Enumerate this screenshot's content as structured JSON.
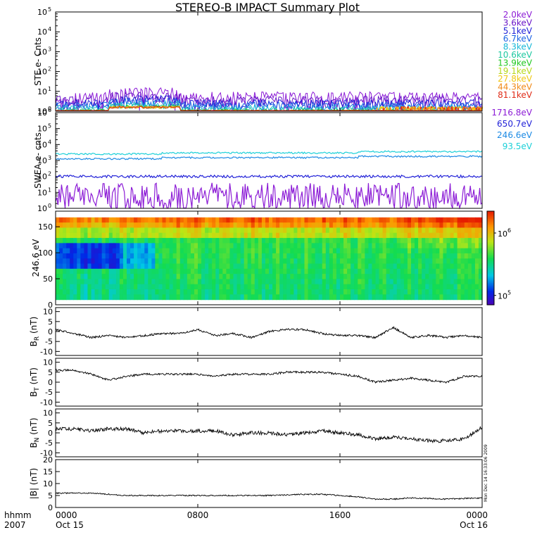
{
  "title": "STEREO-B IMPACT Summary Plot",
  "xaxis": {
    "row1_label": "hhmm",
    "row2_label": "2007",
    "ticks": [
      {
        "hour": 0,
        "top": "0000",
        "bottom": "Oct 15"
      },
      {
        "hour": 8,
        "top": "0800",
        "bottom": ""
      },
      {
        "hour": 16,
        "top": "1600",
        "bottom": ""
      },
      {
        "hour": 24,
        "top": "0000",
        "bottom": "Oct 16"
      }
    ]
  },
  "timestamp": "Mon Dec 14 16:33:06 2009",
  "chart_data": [
    {
      "id": "ste",
      "type": "line",
      "ylabel": "STE e- Cnts",
      "yscale": "log",
      "ylim_exp": [
        0,
        5
      ],
      "yticks": [
        {
          "base": "10",
          "exp": "0"
        },
        {
          "base": "10",
          "exp": "1"
        },
        {
          "base": "10",
          "exp": "2"
        },
        {
          "base": "10",
          "exp": "3"
        },
        {
          "base": "10",
          "exp": "4"
        },
        {
          "base": "10",
          "exp": "5"
        }
      ],
      "series": [
        {
          "name": "2.0keV",
          "color": "#8c1cd6",
          "level": 5.0,
          "noise": 0.45
        },
        {
          "name": "3.6keV",
          "color": "#6a16c8",
          "level": 3.4,
          "noise": 0.35
        },
        {
          "name": "5.1keV",
          "color": "#2222d8",
          "level": 2.4,
          "noise": 0.3
        },
        {
          "name": "6.7keV",
          "color": "#1c64e4",
          "level": 1.9,
          "noise": 0.25
        },
        {
          "name": "8.3keV",
          "color": "#18b8d8",
          "level": 1.5,
          "noise": 0.2
        },
        {
          "name": "10.6keV",
          "color": "#1ec8a0",
          "level": 1.2,
          "noise": 0.15
        },
        {
          "name": "13.9keV",
          "color": "#22c822",
          "level": 1.05,
          "noise": 0.1
        },
        {
          "name": "19.1keV",
          "color": "#b8d81c",
          "level": 1.0,
          "noise": 0.08
        },
        {
          "name": "27.8keV",
          "color": "#f0c818",
          "level": 1.0,
          "noise": 0.06
        },
        {
          "name": "44.3keV",
          "color": "#f08a18",
          "level": 1.0,
          "noise": 0.06
        },
        {
          "name": "81.1keV",
          "color": "#e02c18",
          "level": 1.0,
          "noise": 0.06
        }
      ]
    },
    {
      "id": "swea",
      "type": "line",
      "ylabel": "SWEA e- cnts",
      "yscale": "log",
      "ylim_exp": [
        0,
        6
      ],
      "yticks": [
        {
          "base": "10",
          "exp": "0"
        },
        {
          "base": "10",
          "exp": "1"
        },
        {
          "base": "10",
          "exp": "2"
        },
        {
          "base": "10",
          "exp": "3"
        },
        {
          "base": "10",
          "exp": "4"
        },
        {
          "base": "10",
          "exp": "5"
        },
        {
          "base": "10",
          "exp": "6"
        }
      ],
      "series": [
        {
          "name": "1716.8eV",
          "color": "#8c1cd6",
          "level": 5,
          "noise": 0.9
        },
        {
          "name": "650.7eV",
          "color": "#2222d8",
          "level": 100,
          "noise": 0.08
        },
        {
          "name": "246.6eV",
          "color": "#1c8ae4",
          "level": 1500,
          "noise": 0.05
        },
        {
          "name": "93.5eV",
          "color": "#1cd0d8",
          "level": 3000,
          "noise": 0.05
        }
      ]
    },
    {
      "id": "pad",
      "type": "heatmap",
      "ylabel": "246.6 eV",
      "ylim": [
        0,
        180
      ],
      "yticks": [
        "0",
        "50",
        "100",
        "150"
      ],
      "colorbar": {
        "scale": "log",
        "min_exp": 5,
        "max_exp": 6,
        "labels": [
          {
            "base": "10",
            "exp": "5"
          },
          {
            "base": "10",
            "exp": "6"
          }
        ]
      }
    },
    {
      "id": "br",
      "type": "line",
      "ylabel": "B",
      "ylabel_sub": "R",
      "ylabel_unit": "(nT)",
      "ylim": [
        -12,
        12
      ],
      "yticks": [
        "-10",
        "-5",
        "0",
        "5",
        "10"
      ],
      "x_hours": [
        0,
        1,
        2,
        3,
        4,
        5,
        6,
        7,
        8,
        9,
        10,
        11,
        12,
        13,
        14,
        15,
        16,
        17,
        18,
        19,
        20,
        21,
        22,
        23,
        24
      ],
      "values": [
        1,
        -1,
        -3,
        -2,
        -3,
        -2,
        -1,
        -1,
        1,
        -2,
        -1,
        -3,
        0,
        1,
        1,
        -1,
        -2,
        -2,
        -3,
        2,
        -3,
        -2,
        -3,
        -2,
        -3
      ]
    },
    {
      "id": "bt",
      "type": "line",
      "ylabel": "B",
      "ylabel_sub": "T",
      "ylabel_unit": "(nT)",
      "ylim": [
        -12,
        12
      ],
      "yticks": [
        "-10",
        "-5",
        "0",
        "5",
        "10"
      ],
      "x_hours": [
        0,
        1,
        2,
        3,
        4,
        5,
        6,
        7,
        8,
        9,
        10,
        11,
        12,
        13,
        14,
        15,
        16,
        17,
        18,
        19,
        20,
        21,
        22,
        23,
        24
      ],
      "values": [
        6,
        6,
        4,
        1,
        3,
        4,
        4,
        4,
        4,
        3,
        4,
        4,
        4,
        5,
        5,
        5,
        4,
        3,
        0,
        1,
        2,
        1,
        0,
        3,
        3
      ]
    },
    {
      "id": "bn",
      "type": "line",
      "ylabel": "B",
      "ylabel_sub": "N",
      "ylabel_unit": "(nT)",
      "ylim": [
        -12,
        12
      ],
      "yticks": [
        "-10",
        "-5",
        "0",
        "5",
        "10"
      ],
      "x_hours": [
        0,
        1,
        2,
        3,
        4,
        5,
        6,
        7,
        8,
        9,
        10,
        11,
        12,
        13,
        14,
        15,
        16,
        17,
        18,
        19,
        20,
        21,
        22,
        23,
        24
      ],
      "values": [
        2,
        2,
        1,
        2,
        2,
        0,
        1,
        1,
        1,
        1,
        -1,
        0,
        0,
        -1,
        0,
        1,
        0,
        -1,
        -3,
        -2,
        -3,
        -4,
        -4,
        -3,
        3
      ]
    },
    {
      "id": "bmag",
      "type": "line",
      "ylabel": "|B|",
      "ylabel_unit": "(nT)",
      "ylim": [
        0,
        20
      ],
      "yticks": [
        "0",
        "5",
        "10",
        "15",
        "20"
      ],
      "x_hours": [
        0,
        2,
        4,
        6,
        8,
        10,
        12,
        14,
        15,
        16,
        17,
        18,
        19,
        20,
        22,
        24
      ],
      "values": [
        6,
        6,
        5,
        5,
        5,
        5,
        5,
        5.5,
        5.5,
        5,
        4.5,
        3.5,
        3.5,
        4,
        3.5,
        4
      ]
    }
  ]
}
